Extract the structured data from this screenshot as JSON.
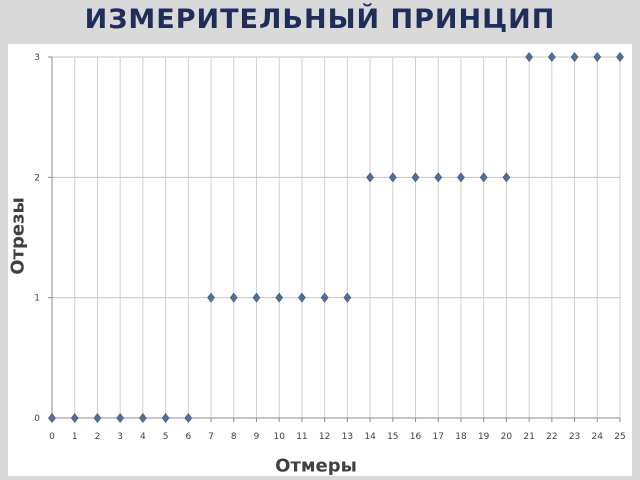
{
  "slide": {
    "title": "ИЗМЕРИТЕЛЬНЫЙ ПРИНЦИП"
  },
  "chart_data": {
    "type": "scatter",
    "title": "",
    "xlabel": "Отмеры",
    "ylabel": "Отрезы",
    "xlim": [
      0,
      25
    ],
    "ylim": [
      0,
      3
    ],
    "x_ticks": [
      "0",
      "1",
      "2",
      "3",
      "4",
      "5",
      "6",
      "7",
      "8",
      "9",
      "10",
      "11",
      "12",
      "13",
      "14",
      "15",
      "16",
      "17",
      "18",
      "19",
      "20",
      "21",
      "22",
      "23",
      "24",
      "25"
    ],
    "y_ticks": [
      "0",
      "1",
      "2",
      "3"
    ],
    "grid": true,
    "legend": "none",
    "marker": "diamond",
    "series": [
      {
        "color": "#4f6f96",
        "x": [
          0,
          1,
          2,
          3,
          4,
          5,
          6,
          7,
          8,
          9,
          10,
          11,
          12,
          13,
          14,
          15,
          16,
          17,
          18,
          19,
          20,
          21,
          22,
          23,
          24,
          25
        ],
        "y": [
          0,
          0,
          0,
          0,
          0,
          0,
          0,
          1,
          1,
          1,
          1,
          1,
          1,
          1,
          2,
          2,
          2,
          2,
          2,
          2,
          2,
          3,
          3,
          3,
          3,
          3
        ]
      }
    ]
  }
}
